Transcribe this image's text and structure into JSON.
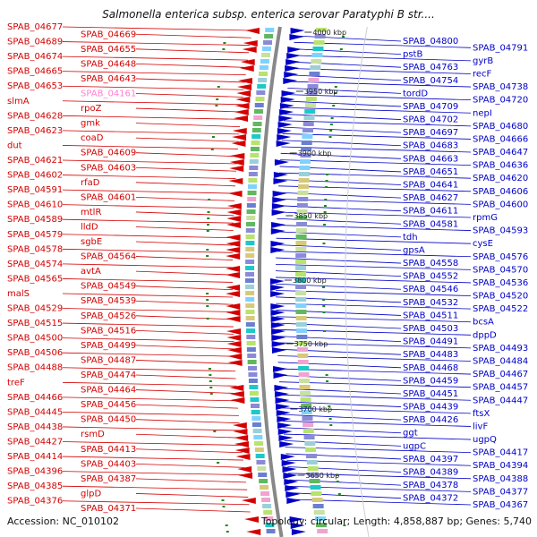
{
  "title": "Salmonella enterica subsp. enterica serovar Paratyphi B str....",
  "footer": {
    "accession": "Accession: NC_010102",
    "topology": "Topology: circular; Length: 4,858,887 bp; Genes: 5,740"
  },
  "ticks": [
    "4000 kbp",
    "3950 kbp",
    "3900 kbp",
    "3850 kbp",
    "3800 kbp",
    "3750 kbp",
    "3700 kbp",
    "3650 kbp"
  ],
  "colors": {
    "forward": "#d40000",
    "reverse": "#0000c8",
    "highlight": "#ff7fd0",
    "backbone": "#888888"
  },
  "left_labels": [
    "SPAB_04677",
    "SPAB_04669",
    "SPAB_04689",
    "SPAB_04655",
    "SPAB_04674",
    "SPAB_04648",
    "SPAB_04665",
    "SPAB_04643",
    "SPAB_04653",
    "SPAB_04161",
    "slmA",
    "rpoZ",
    "SPAB_04628",
    "gmk",
    "SPAB_04623",
    "coaD",
    "dut",
    "SPAB_04609",
    "SPAB_04621",
    "SPAB_04603",
    "SPAB_04602",
    "rfaD",
    "SPAB_04591",
    "SPAB_04601",
    "SPAB_04610",
    "mtlR",
    "SPAB_04589",
    "lldD",
    "SPAB_04579",
    "sgbE",
    "SPAB_04578",
    "SPAB_04564",
    "SPAB_04574",
    "avtA",
    "SPAB_04565",
    "SPAB_04549",
    "malS",
    "SPAB_04539",
    "SPAB_04529",
    "SPAB_04526",
    "SPAB_04515",
    "SPAB_04516",
    "SPAB_04500",
    "SPAB_04499",
    "SPAB_04506",
    "SPAB_04487",
    "SPAB_04488",
    "SPAB_04474",
    "treF",
    "SPAB_04464",
    "SPAB_04466",
    "SPAB_04456",
    "SPAB_04445",
    "SPAB_04450",
    "SPAB_04438",
    "rsmD",
    "SPAB_04427",
    "SPAB_04413",
    "SPAB_04414",
    "SPAB_04403",
    "SPAB_04396",
    "SPAB_04387",
    "SPAB_04385",
    "glpD",
    "SPAB_04376",
    "SPAB_04371"
  ],
  "right_labels": [
    "SPAB_04800",
    "SPAB_04791",
    "pstB",
    "gyrB",
    "SPAB_04763",
    "recF",
    "SPAB_04754",
    "SPAB_04738",
    "tordD",
    "SPAB_04720",
    "SPAB_04709",
    "nepI",
    "SPAB_04702",
    "SPAB_04680",
    "SPAB_04697",
    "SPAB_04666",
    "SPAB_04683",
    "SPAB_04647",
    "SPAB_04663",
    "SPAB_04636",
    "SPAB_04651",
    "SPAB_04620",
    "SPAB_04641",
    "SPAB_04606",
    "SPAB_04627",
    "SPAB_04600",
    "SPAB_04611",
    "rpmG",
    "SPAB_04581",
    "SPAB_04593",
    "tdh",
    "cysE",
    "gpsA",
    "SPAB_04576",
    "SPAB_04558",
    "SPAB_04570",
    "SPAB_04552",
    "SPAB_04536",
    "SPAB_04546",
    "SPAB_04520",
    "SPAB_04532",
    "SPAB_04522",
    "SPAB_04511",
    "bcsA",
    "SPAB_04503",
    "dppD",
    "SPAB_04491",
    "SPAB_04493",
    "SPAB_04483",
    "SPAB_04484",
    "SPAB_04468",
    "SPAB_04467",
    "SPAB_04459",
    "SPAB_04457",
    "SPAB_04451",
    "SPAB_04447",
    "SPAB_04439",
    "ftsX",
    "SPAB_04426",
    "livF",
    "ggt",
    "ugpQ",
    "ugpC",
    "SPAB_04417",
    "SPAB_04397",
    "SPAB_04394",
    "SPAB_04389",
    "SPAB_04388",
    "SPAB_04378",
    "SPAB_04377",
    "SPAB_04372",
    "SPAB_04367"
  ]
}
